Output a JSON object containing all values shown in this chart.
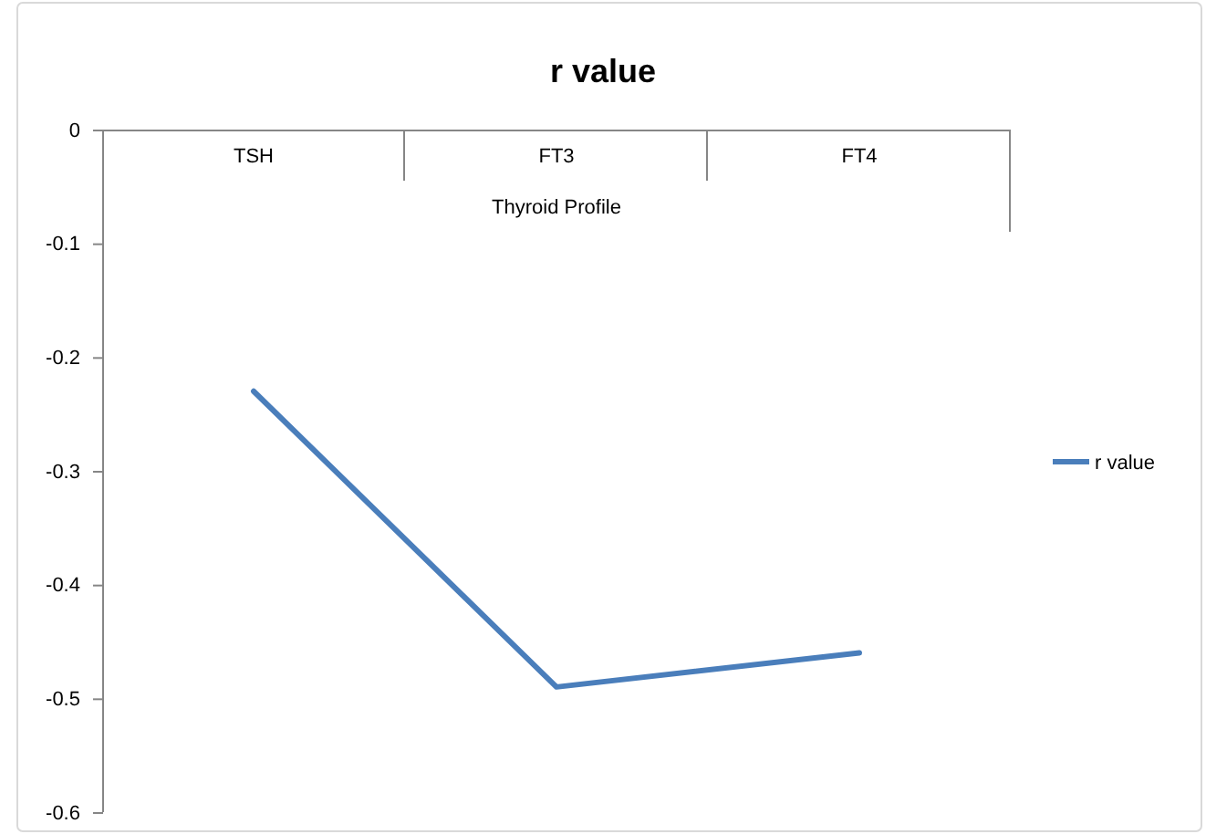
{
  "chart_data": {
    "type": "line",
    "title": "r value",
    "xlabel": "Thyroid Profile",
    "categories": [
      "TSH",
      "FT3",
      "FT4"
    ],
    "series": [
      {
        "name": "r value",
        "color": "#4a7ebb",
        "values": [
          -0.23,
          -0.49,
          -0.46
        ]
      }
    ],
    "ylim": [
      -0.6,
      0
    ],
    "yticks": [
      0,
      -0.1,
      -0.2,
      -0.3,
      -0.4,
      -0.5,
      -0.6
    ],
    "legend": "right",
    "marker": "none",
    "line_style": "solid"
  }
}
